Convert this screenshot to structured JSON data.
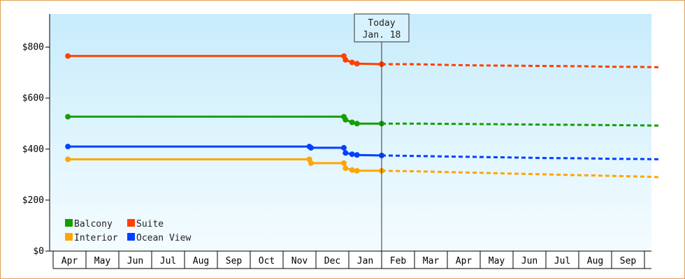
{
  "chart_data": {
    "type": "line",
    "title": "",
    "xlabel": "",
    "ylabel": "",
    "ylim": [
      0,
      930
    ],
    "y_ticks": [
      {
        "value": 0,
        "label": "$0"
      },
      {
        "value": 200,
        "label": "$200"
      },
      {
        "value": 400,
        "label": "$400"
      },
      {
        "value": 600,
        "label": "$600"
      },
      {
        "value": 800,
        "label": "$800"
      }
    ],
    "x_months": [
      "Apr",
      "May",
      "Jun",
      "Jul",
      "Aug",
      "Sep",
      "Oct",
      "Nov",
      "Dec",
      "Jan",
      "Feb",
      "Mar",
      "Apr",
      "May",
      "Jun",
      "Jul",
      "Aug",
      "Sep"
    ],
    "today": {
      "line1": "Today",
      "line2": "Jan. 18",
      "x": 9.5
    },
    "grid": false,
    "legend_position": "bottom-left",
    "series": [
      {
        "name": "Suite",
        "color": "#ff4000",
        "solid": [
          [
            -0.05,
            765
          ],
          [
            8.35,
            765
          ],
          [
            8.4,
            750
          ],
          [
            8.6,
            740
          ],
          [
            8.75,
            735
          ],
          [
            9.5,
            733
          ]
        ],
        "dashed": [
          [
            9.5,
            733
          ],
          [
            10.5,
            733
          ],
          [
            11.5,
            730
          ],
          [
            12.5,
            728
          ],
          [
            13.5,
            727
          ],
          [
            14.5,
            726
          ],
          [
            15.5,
            725
          ],
          [
            16.5,
            723
          ],
          [
            17.5,
            722
          ],
          [
            17.95,
            721
          ]
        ],
        "markers": [
          [
            -0.05,
            765
          ],
          [
            8.35,
            765
          ],
          [
            8.4,
            750
          ],
          [
            8.6,
            740
          ],
          [
            8.75,
            735
          ],
          [
            9.5,
            733
          ]
        ]
      },
      {
        "name": "Balcony",
        "color": "#12a000",
        "solid": [
          [
            -0.05,
            527
          ],
          [
            8.35,
            527
          ],
          [
            8.4,
            515
          ],
          [
            8.6,
            505
          ],
          [
            8.75,
            500
          ],
          [
            9.5,
            500
          ]
        ],
        "dashed": [
          [
            9.5,
            500
          ],
          [
            10.5,
            500
          ],
          [
            11.5,
            499
          ],
          [
            12.5,
            498
          ],
          [
            13.5,
            497
          ],
          [
            14.5,
            496
          ],
          [
            15.5,
            495
          ],
          [
            16.5,
            494
          ],
          [
            17.5,
            493
          ],
          [
            17.95,
            492
          ]
        ],
        "markers": [
          [
            -0.05,
            527
          ],
          [
            8.35,
            527
          ],
          [
            8.4,
            515
          ],
          [
            8.6,
            505
          ],
          [
            8.75,
            500
          ],
          [
            9.5,
            500
          ]
        ]
      },
      {
        "name": "Ocean View",
        "color": "#0040ff",
        "solid": [
          [
            -0.05,
            410
          ],
          [
            7.3,
            410
          ],
          [
            7.35,
            405
          ],
          [
            8.35,
            405
          ],
          [
            8.4,
            385
          ],
          [
            8.6,
            380
          ],
          [
            8.75,
            377
          ],
          [
            9.5,
            375
          ]
        ],
        "dashed": [
          [
            9.5,
            375
          ],
          [
            10.5,
            373
          ],
          [
            11.5,
            371
          ],
          [
            12.5,
            369
          ],
          [
            13.5,
            367
          ],
          [
            14.5,
            365
          ],
          [
            15.5,
            364
          ],
          [
            16.5,
            362
          ],
          [
            17.5,
            361
          ],
          [
            17.95,
            360
          ]
        ],
        "markers": [
          [
            -0.05,
            410
          ],
          [
            7.3,
            410
          ],
          [
            7.35,
            405
          ],
          [
            8.35,
            405
          ],
          [
            8.4,
            385
          ],
          [
            8.6,
            380
          ],
          [
            8.75,
            377
          ],
          [
            9.5,
            375
          ]
        ]
      },
      {
        "name": "Interior",
        "color": "#ffa500",
        "solid": [
          [
            -0.05,
            360
          ],
          [
            7.3,
            360
          ],
          [
            7.35,
            345
          ],
          [
            8.35,
            345
          ],
          [
            8.4,
            325
          ],
          [
            8.6,
            318
          ],
          [
            8.75,
            315
          ],
          [
            9.5,
            315
          ]
        ],
        "dashed": [
          [
            9.5,
            315
          ],
          [
            10.5,
            313
          ],
          [
            11.5,
            310
          ],
          [
            12.5,
            307
          ],
          [
            13.5,
            304
          ],
          [
            14.5,
            301
          ],
          [
            15.5,
            298
          ],
          [
            16.5,
            295
          ],
          [
            17.5,
            292
          ],
          [
            17.95,
            290
          ]
        ],
        "markers": [
          [
            -0.05,
            360
          ],
          [
            7.3,
            360
          ],
          [
            7.35,
            345
          ],
          [
            8.35,
            345
          ],
          [
            8.4,
            325
          ],
          [
            8.6,
            318
          ],
          [
            8.75,
            315
          ],
          [
            9.5,
            315
          ]
        ]
      }
    ],
    "legend": [
      {
        "name": "Balcony",
        "color": "#12a000"
      },
      {
        "name": "Suite",
        "color": "#ff4000"
      },
      {
        "name": "Interior",
        "color": "#ffa500"
      },
      {
        "name": "Ocean View",
        "color": "#0040ff"
      }
    ]
  }
}
